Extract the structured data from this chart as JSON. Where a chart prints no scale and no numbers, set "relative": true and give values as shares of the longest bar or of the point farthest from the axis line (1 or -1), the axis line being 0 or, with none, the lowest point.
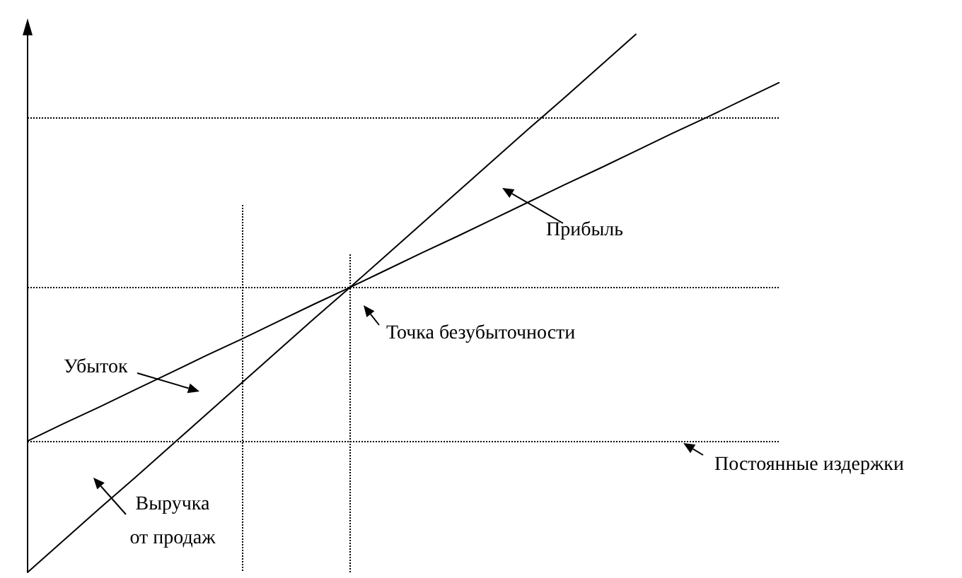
{
  "chart_data": {
    "type": "line",
    "relative": true,
    "tick_labels": false,
    "marker": "none",
    "line_style": "solid",
    "categories": [
      null,
      null,
      null,
      null,
      null,
      null,
      null,
      null,
      null,
      null,
      null,
      null,
      null,
      null,
      null,
      null,
      null,
      null,
      null,
      null,
      null,
      null
    ],
    "series": [
      {
        "color": "#000000",
        "values": [
          0,
          0.059,
          0.118,
          0.176,
          0.235,
          0.294,
          0.353,
          0.412,
          0.471,
          0.529,
          0.588,
          0.647,
          0.706,
          0.765,
          0.824,
          0.882,
          0.941,
          1,
          null,
          null,
          null,
          null
        ]
      },
      {
        "color": "#000000",
        "values": [
          0.244,
          0.276,
          0.307,
          0.339,
          0.371,
          0.403,
          0.434,
          0.466,
          0.498,
          0.529,
          0.561,
          0.593,
          0.624,
          0.656,
          0.688,
          0.72,
          0.751,
          0.783,
          0.815,
          0.846,
          0.878,
          0.91
        ]
      }
    ],
    "ref_lines": [
      {
        "axis": "y",
        "value": 0.844,
        "color": "#000000",
        "line_style": "dotted"
      },
      {
        "axis": "y",
        "value": 0.529,
        "color": "#000000",
        "line_style": "dotted"
      },
      {
        "axis": "y",
        "value": 0.244,
        "color": "#000000",
        "line_style": "dotted"
      }
    ],
    "annotations": [
      "Прибыль",
      "Убыток",
      "Точка безубыточности",
      "Выручка от продаж",
      "Постоянные издержки"
    ]
  }
}
